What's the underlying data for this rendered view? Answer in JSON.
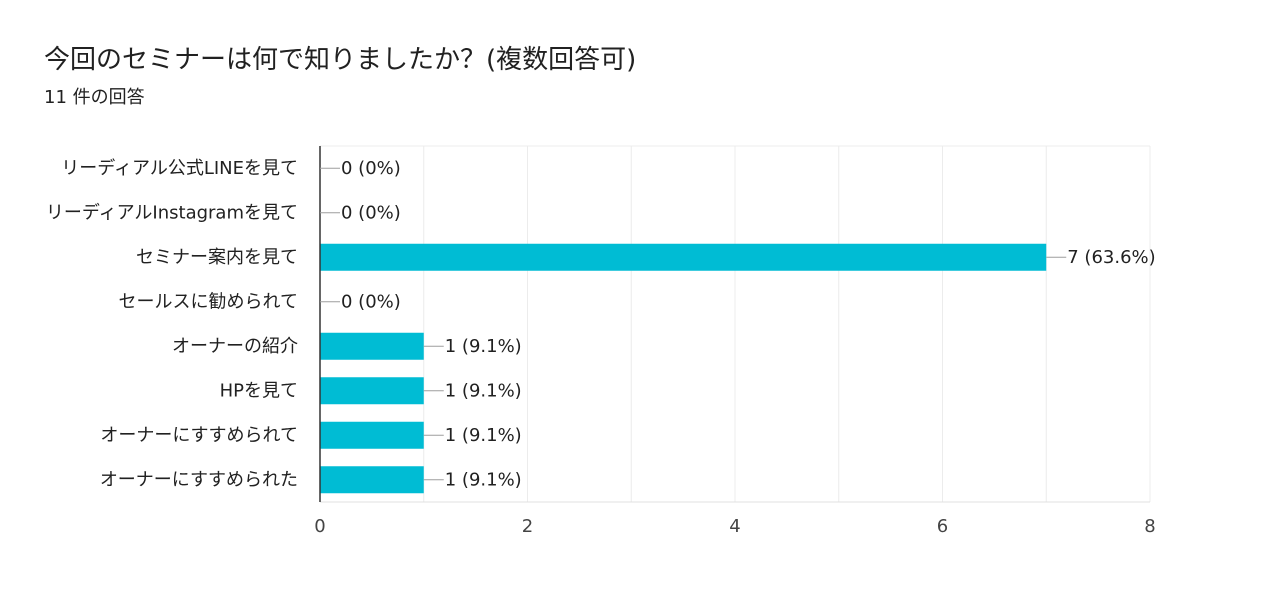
{
  "header": {
    "title": "今回のセミナーは何で知りましたか？(複数回答可)",
    "response_count": "11 件の回答"
  },
  "chart_data": {
    "type": "bar",
    "orientation": "horizontal",
    "categories": [
      "リーディアル公式LINEを見て",
      "リーディアルInstagramを見て",
      "セミナー案内を見て",
      "セールスに勧められて",
      "オーナーの紹介",
      "HPを見て",
      "オーナーにすすめられて",
      "オーナーにすすめられた"
    ],
    "values": [
      0,
      0,
      7,
      0,
      1,
      1,
      1,
      1
    ],
    "data_labels": [
      "0 (0%)",
      "0 (0%)",
      "7 (63.6%)",
      "0 (0%)",
      "1 (9.1%)",
      "1 (9.1%)",
      "1 (9.1%)",
      "1 (9.1%)"
    ],
    "xlim": [
      0,
      8
    ],
    "x_ticks": [
      0,
      2,
      4,
      6,
      8
    ],
    "grid": true,
    "legend": "none",
    "bar_color": "#00bcd4"
  }
}
